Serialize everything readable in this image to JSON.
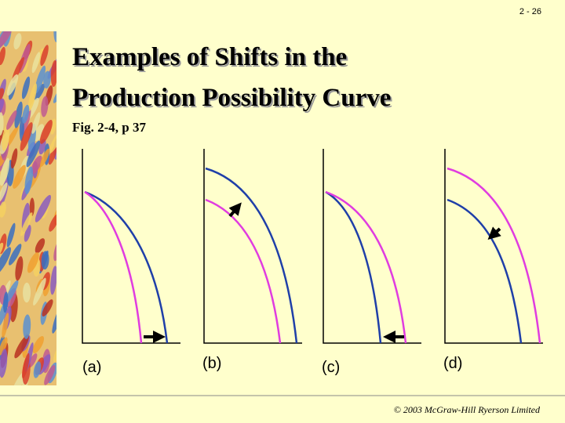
{
  "slide_number": "2 - 26",
  "title": [
    "Examples of Shifts in the",
    "Production Possibility Curve"
  ],
  "subtitle": "Fig. 2-4, p 37",
  "panels": [
    "(a)",
    "(b)",
    "(c)",
    "(d)"
  ],
  "footer": "© 2003 McGraw-Hill Ryerson Limited"
}
